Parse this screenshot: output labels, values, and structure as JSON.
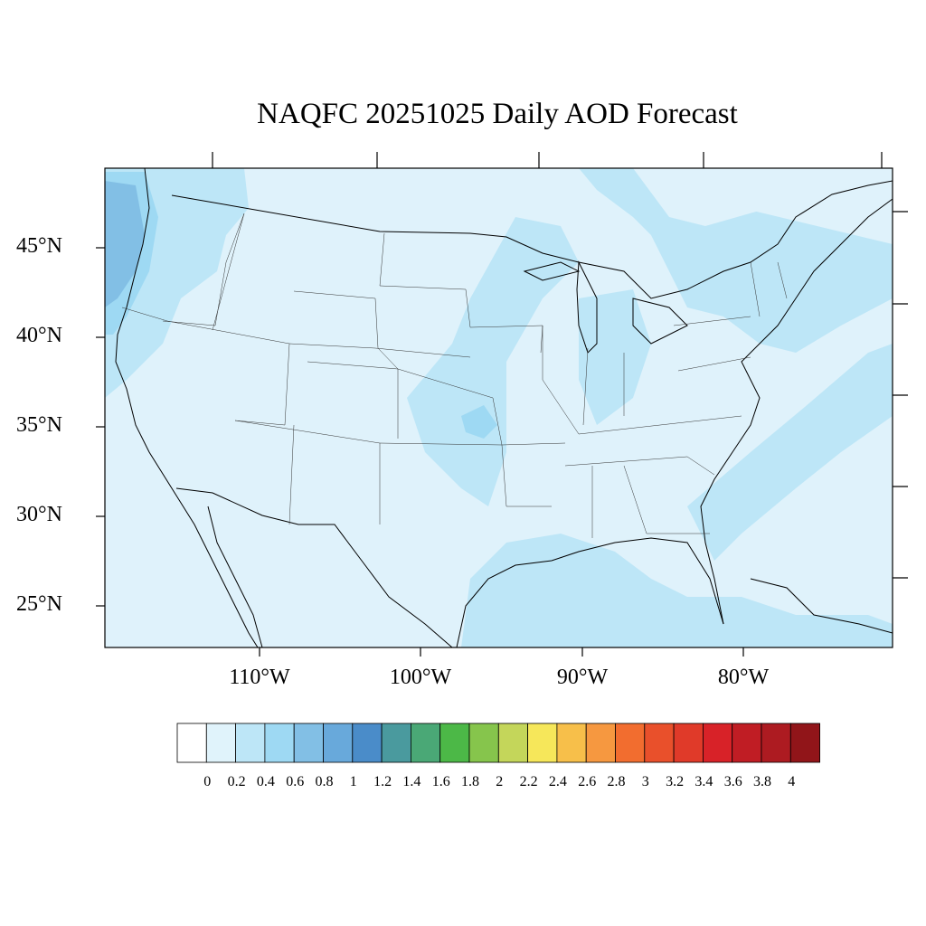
{
  "title": "NAQFC 20251025 Daily AOD Forecast",
  "map": {
    "lat_labels": [
      "45°N",
      "40°N",
      "35°N",
      "30°N",
      "25°N"
    ],
    "lon_labels": [
      "110°W",
      "100°W",
      "90°W",
      "80°W"
    ]
  },
  "colorbar": {
    "labels": [
      "0",
      "0.2",
      "0.4",
      "0.6",
      "0.8",
      "1",
      "1.2",
      "1.4",
      "1.6",
      "1.8",
      "2",
      "2.2",
      "2.4",
      "2.6",
      "2.8",
      "3",
      "3.2",
      "3.4",
      "3.6",
      "3.8",
      "4"
    ],
    "colors": [
      "#ffffff",
      "#e0f3fb",
      "#bde6f7",
      "#9ed9f3",
      "#82bfe5",
      "#68a9db",
      "#4a8cc9",
      "#4a9a9e",
      "#4aa876",
      "#4cb847",
      "#86c54c",
      "#c4d65a",
      "#f6e75a",
      "#f7bf4a",
      "#f69840",
      "#f26d2f",
      "#e9502b",
      "#e03a29",
      "#d82228",
      "#c01d24",
      "#ad1b21",
      "#911519"
    ]
  }
}
